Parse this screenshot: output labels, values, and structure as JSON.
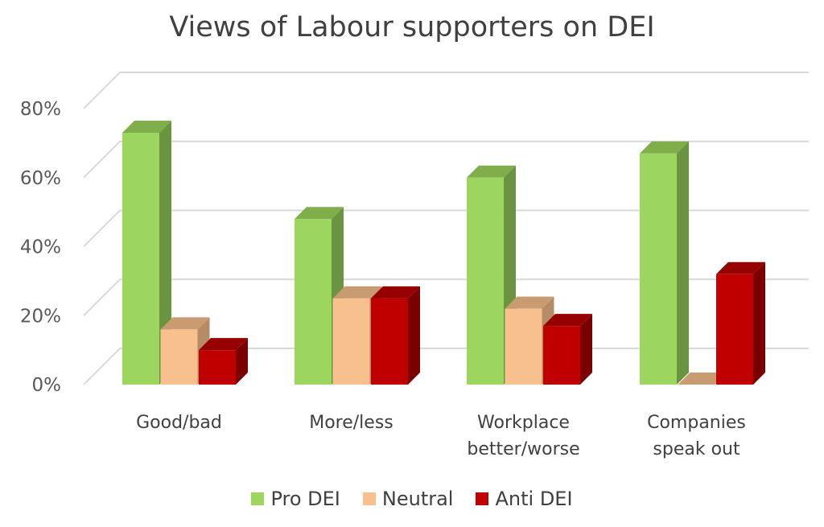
{
  "chart_data": {
    "type": "bar",
    "title": "Views of Labour supporters on DEI",
    "categories": [
      "Good/bad",
      "More/less",
      "Workplace better/worse",
      "Companies speak out"
    ],
    "category_lines": [
      [
        "Good/bad"
      ],
      [
        "More/less"
      ],
      [
        "Workplace",
        "better/worse"
      ],
      [
        "Companies",
        "speak out"
      ]
    ],
    "series": [
      {
        "name": "Pro DEI",
        "values": [
          73,
          48,
          60,
          67
        ],
        "color": "#9cd65e",
        "side": "#6b9440",
        "top": "#7fae4b"
      },
      {
        "name": "Neutral",
        "values": [
          16,
          25,
          22,
          0
        ],
        "color": "#f8c08d",
        "side": "#b58c66",
        "top": "#c99b70"
      },
      {
        "name": "Anti DEI",
        "values": [
          10,
          25,
          17,
          32
        ],
        "color": "#c00000",
        "side": "#7a0000",
        "top": "#960000"
      }
    ],
    "yticks": [
      "0%",
      "20%",
      "40%",
      "60%",
      "80%"
    ],
    "ylim": [
      0,
      80
    ],
    "grid": true,
    "legend_position": "bottom"
  }
}
